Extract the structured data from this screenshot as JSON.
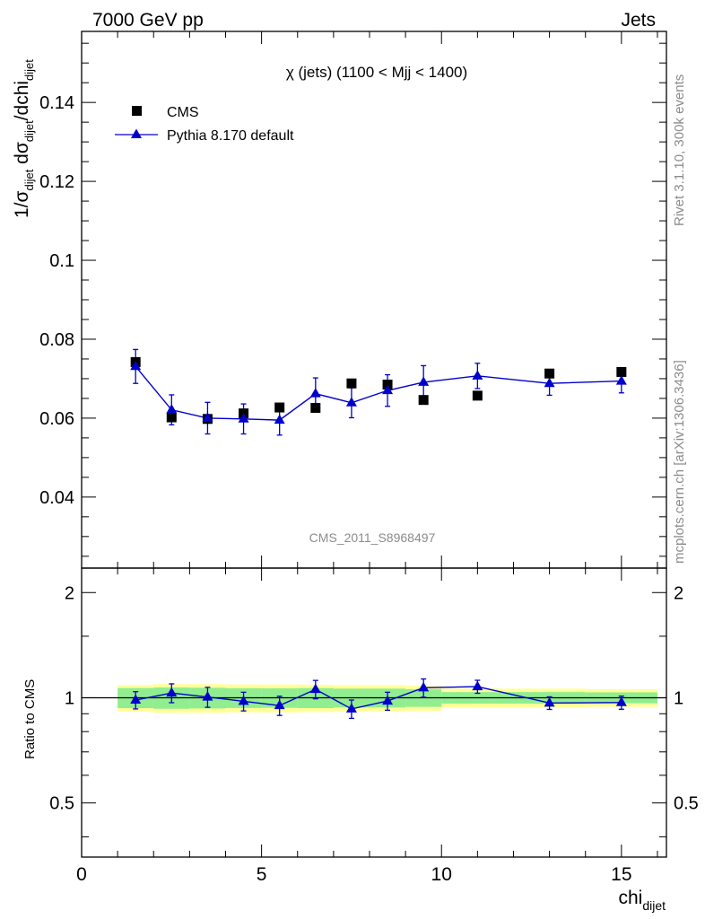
{
  "header": {
    "left_title": "7000 GeV pp",
    "right_title": "Jets"
  },
  "side_text": {
    "rivet": "Rivet 3.1.10,  300k events",
    "site": "mcplots.cern.ch [arXiv:1306.3436]"
  },
  "chart_data": [
    {
      "type": "scatter",
      "panel": "main",
      "title": "χ (jets) (1100 < Mjj < 1400)",
      "watermark": "CMS_2011_S8968497",
      "ylabel": {
        "main": "1/σ",
        "s1": "dijet",
        "mid": " dσ",
        "s2": "dijet",
        "tail": "/dchi",
        "s3": "dijet"
      },
      "xlim": [
        0,
        16.25
      ],
      "ylim": [
        0.022,
        0.158
      ],
      "yticks": [
        0.04,
        0.06,
        0.08,
        0.1,
        0.12,
        0.14
      ],
      "ytick_labels": [
        "0.04",
        "0.06",
        "0.08",
        "0.1",
        "0.12",
        "0.14"
      ],
      "legend": {
        "position": "top-left",
        "entries": [
          "CMS",
          "Pythia 8.170 default"
        ]
      },
      "series": [
        {
          "name": "CMS",
          "marker": "square",
          "color": "#000000",
          "x": [
            1.5,
            2.5,
            3.5,
            4.5,
            5.5,
            6.5,
            7.5,
            8.5,
            9.5,
            11,
            13,
            15
          ],
          "y": [
            0.0742,
            0.0602,
            0.0598,
            0.0612,
            0.0627,
            0.0626,
            0.0688,
            0.0685,
            0.0646,
            0.0657,
            0.0713,
            0.0717
          ]
        },
        {
          "name": "Pythia 8.170 default",
          "marker": "triangle",
          "color": "#0000cc",
          "x": [
            1.5,
            2.5,
            3.5,
            4.5,
            5.5,
            6.5,
            7.5,
            8.5,
            9.5,
            11,
            13,
            15
          ],
          "y": [
            0.0731,
            0.0621,
            0.06,
            0.0598,
            0.0595,
            0.0662,
            0.0639,
            0.067,
            0.0691,
            0.0707,
            0.0688,
            0.0694
          ],
          "err": [
            0.0043,
            0.0038,
            0.004,
            0.0038,
            0.0038,
            0.004,
            0.0038,
            0.004,
            0.0042,
            0.0032,
            0.003,
            0.003
          ]
        }
      ]
    },
    {
      "type": "line",
      "panel": "ratio",
      "ylabel": "Ratio to CMS",
      "xlabel": {
        "main": "chi",
        "sub": "dijet"
      },
      "xlim": [
        0,
        16.25
      ],
      "ylim": [
        0.35,
        2.35
      ],
      "xticks": [
        0,
        5,
        10,
        15
      ],
      "xtick_labels": [
        "0",
        "5",
        "10",
        "15"
      ],
      "yticks": [
        0.5,
        1,
        2
      ],
      "ytick_labels": [
        "0.5",
        "1",
        "2"
      ],
      "reference_line": 1,
      "bands": {
        "bins": [
          [
            1,
            2
          ],
          [
            2,
            3
          ],
          [
            3,
            4
          ],
          [
            4,
            5
          ],
          [
            5,
            6
          ],
          [
            6,
            7
          ],
          [
            7,
            8
          ],
          [
            8,
            9
          ],
          [
            9,
            10
          ],
          [
            10,
            12
          ],
          [
            12,
            14
          ],
          [
            14,
            16
          ]
        ],
        "inner": [
          0.066,
          0.07,
          0.068,
          0.065,
          0.064,
          0.066,
          0.062,
          0.062,
          0.058,
          0.038,
          0.038,
          0.036
        ],
        "outer": [
          0.088,
          0.094,
          0.094,
          0.092,
          0.092,
          0.09,
          0.086,
          0.086,
          0.082,
          0.062,
          0.062,
          0.058
        ],
        "inner_color": "#90ee90",
        "outer_color": "#ffff99"
      },
      "series": [
        {
          "name": "Pythia 8.170 default / CMS",
          "color": "#0000cc",
          "x": [
            1.5,
            2.5,
            3.5,
            4.5,
            5.5,
            6.5,
            7.5,
            8.5,
            9.5,
            11,
            13,
            15
          ],
          "y": [
            0.985,
            1.032,
            1.005,
            0.977,
            0.95,
            1.057,
            0.929,
            0.979,
            1.068,
            1.076,
            0.966,
            0.969
          ],
          "err": [
            0.056,
            0.064,
            0.066,
            0.06,
            0.06,
            0.064,
            0.056,
            0.058,
            0.064,
            0.046,
            0.04,
            0.042
          ]
        }
      ]
    }
  ]
}
